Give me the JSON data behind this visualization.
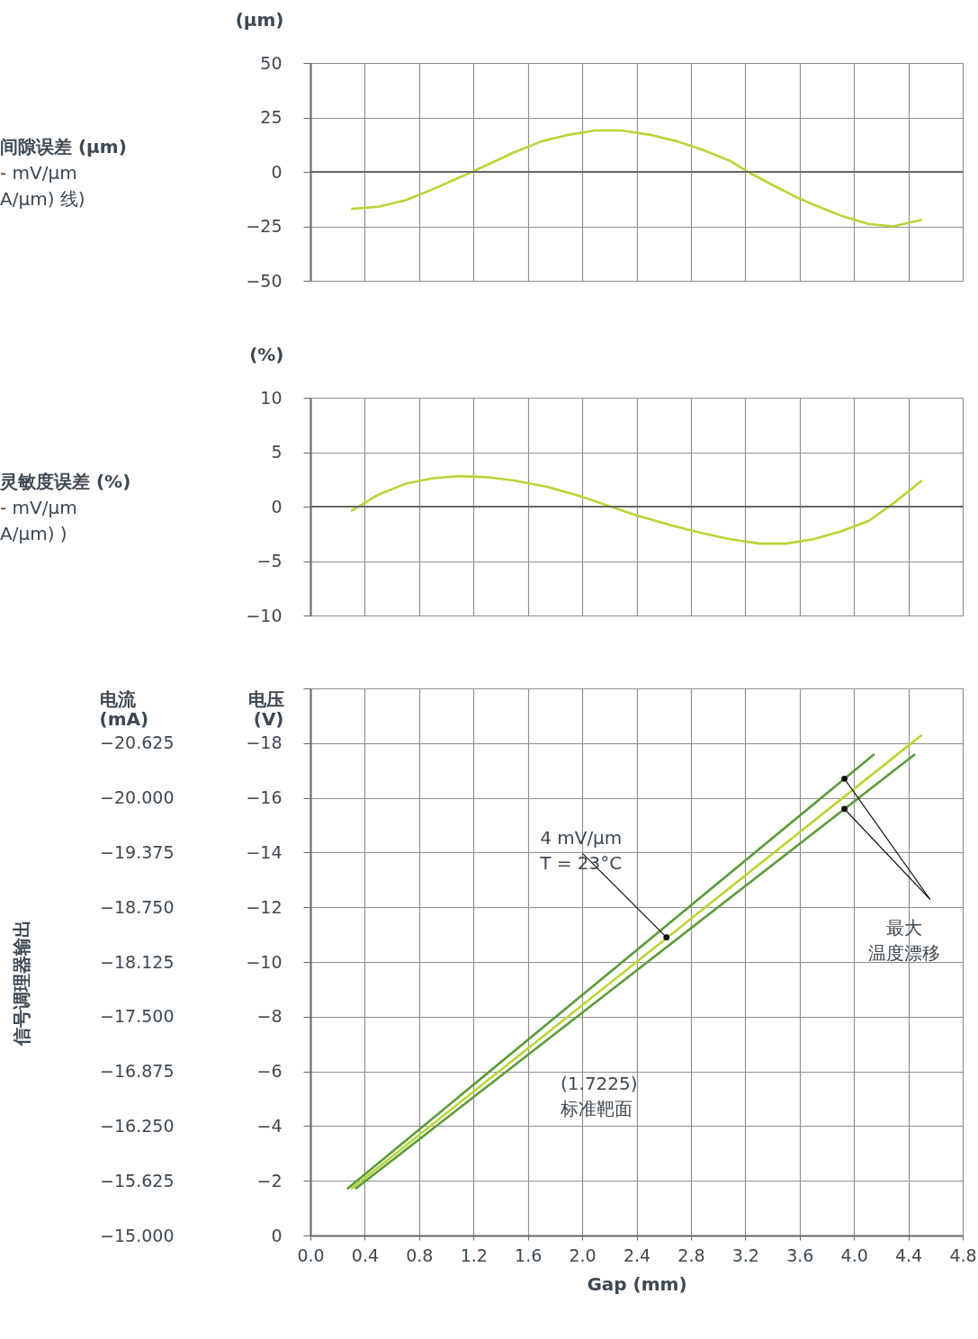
{
  "chart_data": [
    {
      "type": "line",
      "ylabel": "(μm)",
      "xlim": [
        0,
        4.8
      ],
      "xticks": [
        0,
        0.4,
        0.8,
        1.2,
        1.6,
        2,
        2.4,
        2.8,
        3.2,
        3.6,
        4,
        4.4,
        4.8
      ],
      "ylim": [
        -50,
        50
      ],
      "yticks": [
        {
          "value": -50,
          "label": "−50"
        },
        {
          "value": -25,
          "label": "−25"
        },
        0,
        25,
        50
      ],
      "grid": true,
      "tick_labels": "y",
      "x": [
        0.3,
        0.5,
        0.7,
        0.9,
        1.19,
        1.5,
        1.7,
        1.9,
        2.09,
        2.29,
        2.5,
        2.7,
        2.89,
        3.09,
        3.22,
        3.4,
        3.59,
        3.7,
        3.9,
        4.11,
        4.29,
        4.5
      ],
      "series": [
        {
          "color": "#b9d535",
          "values": [
            -17,
            -16,
            -13,
            -8,
            0,
            9,
            14,
            17,
            19,
            19,
            17,
            14,
            10,
            5,
            0,
            -6,
            -12,
            -15,
            -20,
            -24,
            -25,
            -22
          ]
        }
      ],
      "ref_lines": [
        {
          "axis": "y",
          "value": 0,
          "color": "#666666"
        }
      ],
      "annotations": [
        "间隙误差 (μm)",
        "- mV/μm",
        "A/μm) 线)"
      ]
    },
    {
      "type": "line",
      "ylabel": "(%)",
      "xlim": [
        0,
        4.8
      ],
      "xticks": [
        0,
        0.4,
        0.8,
        1.2,
        1.6,
        2,
        2.4,
        2.8,
        3.2,
        3.6,
        4,
        4.4,
        4.8
      ],
      "ylim": [
        -10,
        10
      ],
      "yticks": [
        {
          "value": -10,
          "label": "−10"
        },
        {
          "value": -5,
          "label": "−5"
        },
        0,
        5,
        10
      ],
      "grid": true,
      "tick_labels": "y",
      "x": [
        0.3,
        0.5,
        0.7,
        0.9,
        1.09,
        1.3,
        1.5,
        1.75,
        2.0,
        2.21,
        2.4,
        2.65,
        2.87,
        3.09,
        3.31,
        3.5,
        3.7,
        3.9,
        4.11,
        4.29,
        4.5
      ],
      "series": [
        {
          "color": "#b9d535",
          "values": [
            -0.4,
            1.1,
            2.1,
            2.6,
            2.8,
            2.7,
            2.4,
            1.8,
            0.9,
            0,
            -0.8,
            -1.7,
            -2.4,
            -3.0,
            -3.4,
            -3.4,
            -3.0,
            -2.3,
            -1.3,
            0.3,
            2.4
          ]
        }
      ],
      "ref_lines": [
        {
          "axis": "y",
          "value": 0,
          "color": "#666666"
        }
      ],
      "annotations": [
        "灵敏度误差 (%)",
        "- mV/μm",
        "A/μm) )"
      ]
    },
    {
      "type": "line",
      "xlabel": "Gap (mm)",
      "ylabel": "电压\n(V)",
      "y2label": "电流\n(mA)",
      "xlim": [
        0,
        4.8
      ],
      "xticks": [
        {
          "value": 0,
          "label": "0.0"
        },
        0.4,
        0.8,
        1.2,
        1.6,
        {
          "value": 2,
          "label": "2.0"
        },
        2.4,
        2.8,
        3.2,
        3.6,
        {
          "value": 4,
          "label": "4.0"
        },
        4.4,
        4.8
      ],
      "ylim": [
        0,
        -20
      ],
      "yticks": [
        0,
        {
          "value": -2,
          "label": "−2"
        },
        {
          "value": -4,
          "label": "−4"
        },
        {
          "value": -6,
          "label": "−6"
        },
        {
          "value": -8,
          "label": "−8"
        },
        {
          "value": -10,
          "label": "−10"
        },
        {
          "value": -12,
          "label": "−12"
        },
        {
          "value": -14,
          "label": "−14"
        },
        {
          "value": -16,
          "label": "−16"
        },
        {
          "value": -18,
          "label": "−18"
        },
        {
          "value": -20,
          "label": null
        }
      ],
      "y2lim": [
        -15,
        -21.25
      ],
      "y2ticks": [
        {
          "value": -15,
          "label": "−15.000"
        },
        {
          "value": -15.625,
          "label": "−15.625"
        },
        {
          "value": -16.25,
          "label": "−16.250"
        },
        {
          "value": -16.875,
          "label": "−16.875"
        },
        {
          "value": -17.5,
          "label": "−17.500"
        },
        {
          "value": -18.125,
          "label": "−18.125"
        },
        {
          "value": -18.75,
          "label": "−18.750"
        },
        {
          "value": -19.375,
          "label": "−19.375"
        },
        {
          "value": -20,
          "label": "−20.000"
        },
        {
          "value": -20.625,
          "label": "−20.625"
        }
      ],
      "grid": true,
      "series": [
        {
          "color": "#5b9a3c",
          "x": [
            0.27,
            4.15
          ],
          "values": [
            -1.7,
            -17.6
          ]
        },
        {
          "color": "#b9d535",
          "x": [
            0.3,
            4.5
          ],
          "values": [
            -1.7,
            -18.3
          ]
        },
        {
          "color": "#5b9a3c",
          "x": [
            0.33,
            4.45
          ],
          "values": [
            -1.7,
            -17.6
          ]
        }
      ],
      "annotations": [
        "信号调理器输出",
        "(1.7225)\n标准靶面",
        {
          "text": "4 mV/μm\nT = 23°C",
          "x": 2.62,
          "y": -10.9
        },
        {
          "text": "最大温度漂移",
          "x": 3.93,
          "y": -16.7
        }
      ]
    }
  ]
}
